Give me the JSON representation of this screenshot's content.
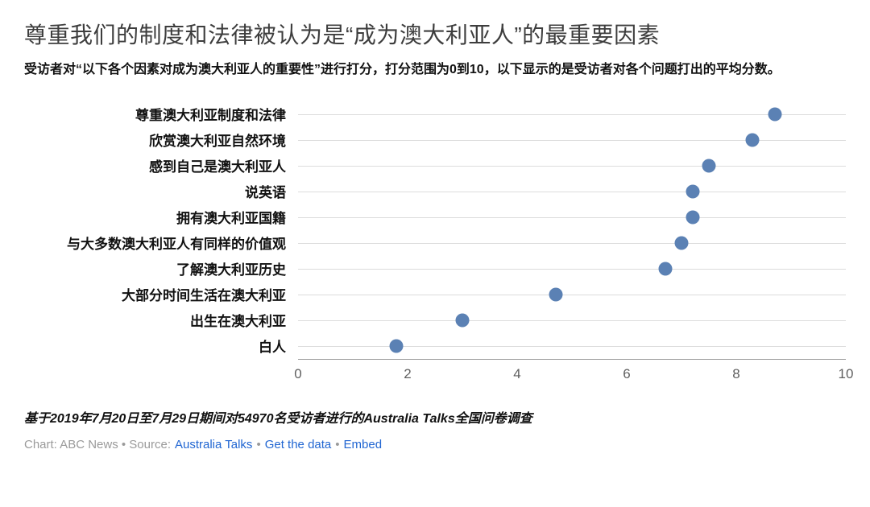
{
  "chart_data": {
    "type": "scatter",
    "title": "尊重我们的制度和法律被认为是“成为澳大利亚人”的最重要因素",
    "subtitle": "受访者对“以下各个因素对成为澳大利亚人的重要性”进行打分，打分范围为0到10，以下显示的是受访者对各个问题打出的平均分数。",
    "categories": [
      "尊重澳大利亚制度和法律",
      "欣赏澳大利亚自然环境",
      "感到自己是澳大利亚人",
      "说英语",
      "拥有澳大利亚国籍",
      "与大多数澳大利亚人有同样的价值观",
      "了解澳大利亚历史",
      "大部分时间生活在澳大利亚",
      "出生在澳大利亚",
      "白人"
    ],
    "values": [
      8.7,
      8.3,
      7.5,
      7.2,
      7.2,
      7.0,
      6.7,
      4.7,
      3.0,
      1.8
    ],
    "xlabel": "",
    "ylabel": "",
    "xlim": [
      0,
      10
    ],
    "xticks": [
      0,
      2,
      4,
      6,
      8,
      10
    ],
    "grid": "horizontal-per-row",
    "legend": "none",
    "dot_color": "#5b81b4",
    "note": "基于2019年7月20日至7月29日期间对54970名受访者进行的Australia Talks全国问卷调查"
  },
  "credit": {
    "prefix": "Chart: ABC News • Source:",
    "links": [
      "Australia Talks",
      "Get the data",
      "Embed"
    ],
    "separator": "•",
    "link_color": "#2166d2"
  }
}
